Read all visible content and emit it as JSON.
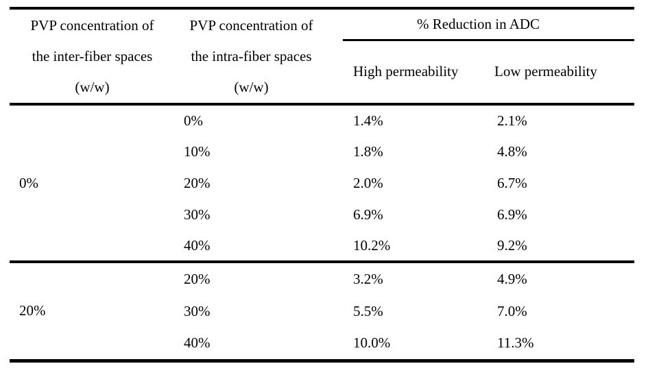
{
  "table": {
    "columns": [
      {
        "header_lines": [
          "PVP concentration of",
          "the inter-fiber spaces",
          "(w/w)"
        ]
      },
      {
        "header_lines": [
          "PVP concentration of",
          "the intra-fiber spaces",
          "(w/w)"
        ]
      }
    ],
    "span_header": "% Reduction in ADC",
    "sub_headers": [
      "High permeability",
      "Low permeability"
    ],
    "groups": [
      {
        "inter_fiber": "0%",
        "rows": [
          {
            "intra_fiber": "0%",
            "high": "1.4%",
            "low": "2.1%"
          },
          {
            "intra_fiber": "10%",
            "high": "1.8%",
            "low": "4.8%"
          },
          {
            "intra_fiber": "20%",
            "high": "2.0%",
            "low": "6.7%"
          },
          {
            "intra_fiber": "30%",
            "high": "6.9%",
            "low": "6.9%"
          },
          {
            "intra_fiber": "40%",
            "high": "10.2%",
            "low": "9.2%"
          }
        ]
      },
      {
        "inter_fiber": "20%",
        "rows": [
          {
            "intra_fiber": "20%",
            "high": "3.2%",
            "low": "4.9%"
          },
          {
            "intra_fiber": "30%",
            "high": "5.5%",
            "low": "7.0%"
          },
          {
            "intra_fiber": "40%",
            "high": "10.0%",
            "low": "11.3%"
          }
        ]
      }
    ]
  }
}
